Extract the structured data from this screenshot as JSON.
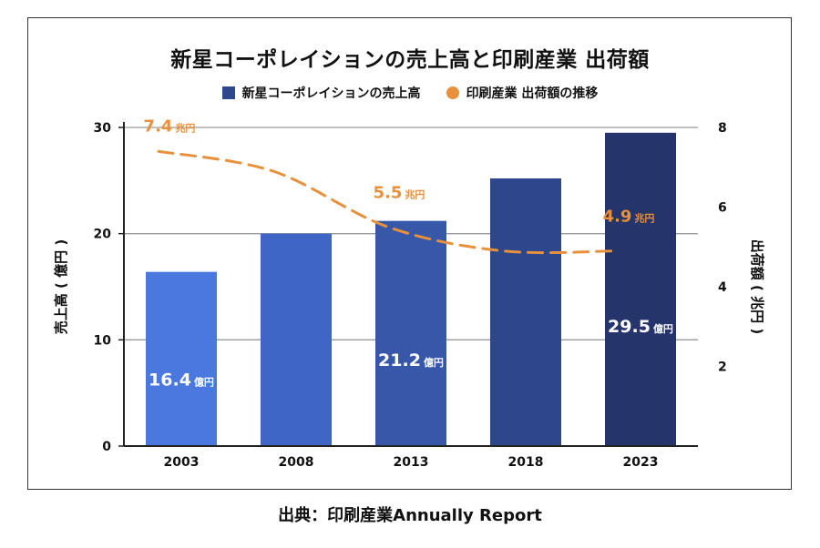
{
  "chart_data": {
    "type": "bar",
    "title": "新星コーポレイションの売上高と印刷産業 出荷額",
    "categories": [
      "2003",
      "2008",
      "2013",
      "2018",
      "2023"
    ],
    "series": [
      {
        "name": "新星コーポレイションの売上高",
        "type": "bar",
        "axis": "left",
        "values": [
          16.4,
          20.0,
          21.2,
          25.2,
          29.5
        ],
        "colors": [
          "#4a78de",
          "#3f66c6",
          "#3757a8",
          "#2e478c",
          "#25346a"
        ],
        "data_labels": [
          {
            "index": 0,
            "value": "16.4",
            "unit": "億円"
          },
          {
            "index": 2,
            "value": "21.2",
            "unit": "億円"
          },
          {
            "index": 4,
            "value": "29.5",
            "unit": "億円"
          }
        ]
      },
      {
        "name": "印刷産業 出荷額の推移",
        "type": "line",
        "style": "dashed",
        "axis": "right",
        "color": "#e8903c",
        "values": [
          7.4,
          6.9,
          5.5,
          4.9,
          4.9
        ],
        "data_labels": [
          {
            "index": 0,
            "value": "7.4",
            "unit": "兆円"
          },
          {
            "index": 2,
            "value": "5.5",
            "unit": "兆円"
          },
          {
            "index": 4,
            "value": "4.9",
            "unit": "兆円"
          }
        ]
      }
    ],
    "y_left": {
      "label": "売上高 ( 億円 )",
      "range": [
        0,
        30
      ],
      "ticks": [
        0,
        10,
        20,
        30
      ]
    },
    "y_right": {
      "label": "出荷額 ( 兆円 )",
      "range": [
        0,
        8
      ],
      "ticks": [
        2,
        4,
        6,
        8
      ]
    },
    "grid": true,
    "legend_position": "top-center"
  },
  "source": "出典：印刷産業Annually Report"
}
